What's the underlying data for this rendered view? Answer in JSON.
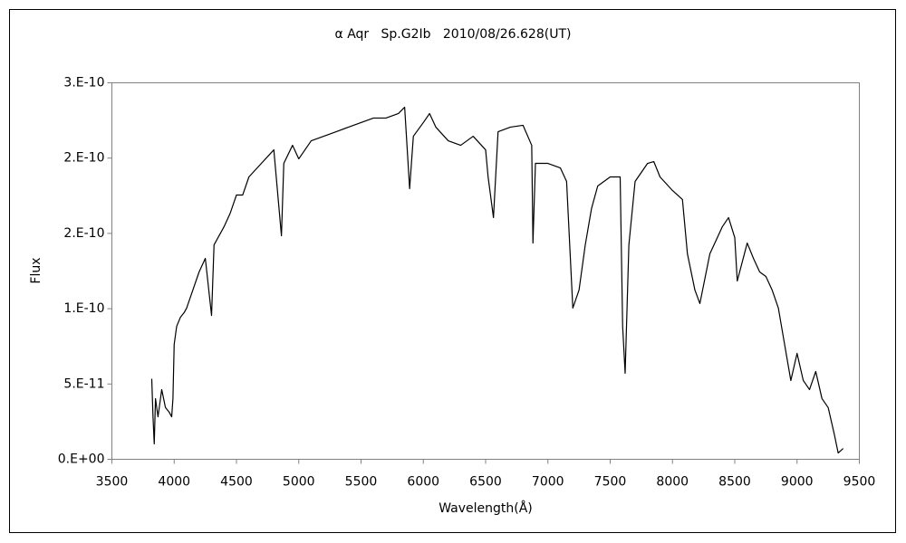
{
  "chart_data": {
    "type": "line",
    "title": "α Aqr   Sp.G2Ib   2010/08/26.628(UT)",
    "x_label": "Wavelength(Å)",
    "y_label": "Flux",
    "xlim": [
      3500,
      9500
    ],
    "xticks": [
      3500,
      4000,
      4500,
      5000,
      5500,
      6000,
      6500,
      7000,
      7500,
      8000,
      8500,
      9000,
      9500
    ],
    "ylim": [
      0,
      2.5e-10
    ],
    "yticks": [
      {
        "value": 0,
        "label": "0.E+00"
      },
      {
        "value": 5e-11,
        "label": "5.E-11"
      },
      {
        "value": 1e-10,
        "label": "1.E-10"
      },
      {
        "value": 1.5e-10,
        "label": "2.E-10"
      },
      {
        "value": 2e-10,
        "label": "2.E-10"
      },
      {
        "value": 2.5e-10,
        "label": "3.E-10"
      }
    ],
    "x": [
      3820,
      3830,
      3840,
      3850,
      3870,
      3900,
      3930,
      3960,
      3980,
      3990,
      4000,
      4020,
      4050,
      4080,
      4100,
      4150,
      4200,
      4250,
      4300,
      4320,
      4400,
      4450,
      4500,
      4550,
      4600,
      4700,
      4800,
      4861,
      4880,
      4950,
      5000,
      5100,
      5200,
      5300,
      5400,
      5500,
      5600,
      5700,
      5800,
      5850,
      5890,
      5920,
      6000,
      6050,
      6100,
      6200,
      6300,
      6400,
      6500,
      6520,
      6563,
      6600,
      6700,
      6800,
      6870,
      6880,
      6900,
      7000,
      7100,
      7150,
      7200,
      7250,
      7300,
      7350,
      7400,
      7500,
      7580,
      7600,
      7620,
      7650,
      7700,
      7800,
      7850,
      7900,
      8000,
      8080,
      8120,
      8180,
      8220,
      8300,
      8400,
      8450,
      8500,
      8520,
      8600,
      8650,
      8700,
      8750,
      8800,
      8850,
      8900,
      8950,
      9000,
      9050,
      9100,
      9150,
      9200,
      9250,
      9300,
      9330,
      9370
    ],
    "series": [
      {
        "name": "Flux",
        "color": "#000000",
        "values": [
          5.35e-11,
          2.82e-11,
          1.02e-11,
          4.03e-11,
          2.82e-11,
          4.63e-11,
          3.43e-11,
          3.13e-11,
          2.82e-11,
          4.03e-11,
          7.63e-11,
          8.83e-11,
          9.43e-11,
          9.74e-11,
          1.004e-10,
          1.124e-10,
          1.244e-10,
          1.334e-10,
          9.55e-11,
          1.424e-10,
          1.544e-10,
          1.635e-10,
          1.755e-10,
          1.755e-10,
          1.875e-10,
          1.965e-10,
          2.055e-10,
          1.484e-10,
          1.965e-10,
          2.085e-10,
          1.995e-10,
          2.115e-10,
          2.145e-10,
          2.175e-10,
          2.206e-10,
          2.236e-10,
          2.266e-10,
          2.266e-10,
          2.296e-10,
          2.338e-10,
          1.797e-10,
          2.145e-10,
          2.236e-10,
          2.296e-10,
          2.206e-10,
          2.115e-10,
          2.085e-10,
          2.145e-10,
          2.055e-10,
          1.875e-10,
          1.605e-10,
          2.175e-10,
          2.206e-10,
          2.218e-10,
          2.085e-10,
          1.436e-10,
          1.965e-10,
          1.965e-10,
          1.935e-10,
          1.845e-10,
          1.004e-10,
          1.124e-10,
          1.424e-10,
          1.665e-10,
          1.815e-10,
          1.875e-10,
          1.875e-10,
          8.83e-11,
          5.71e-11,
          1.424e-10,
          1.845e-10,
          1.965e-10,
          1.977e-10,
          1.875e-10,
          1.785e-10,
          1.725e-10,
          1.364e-10,
          1.124e-10,
          1.034e-10,
          1.364e-10,
          1.544e-10,
          1.605e-10,
          1.472e-10,
          1.184e-10,
          1.436e-10,
          1.334e-10,
          1.244e-10,
          1.214e-10,
          1.124e-10,
          1.004e-10,
          7.63e-11,
          5.23e-11,
          7.03e-11,
          5.23e-11,
          4.63e-11,
          5.83e-11,
          4.03e-11,
          3.43e-11,
          1.62e-11,
          4.2e-12,
          7.2e-12
        ]
      }
    ]
  }
}
